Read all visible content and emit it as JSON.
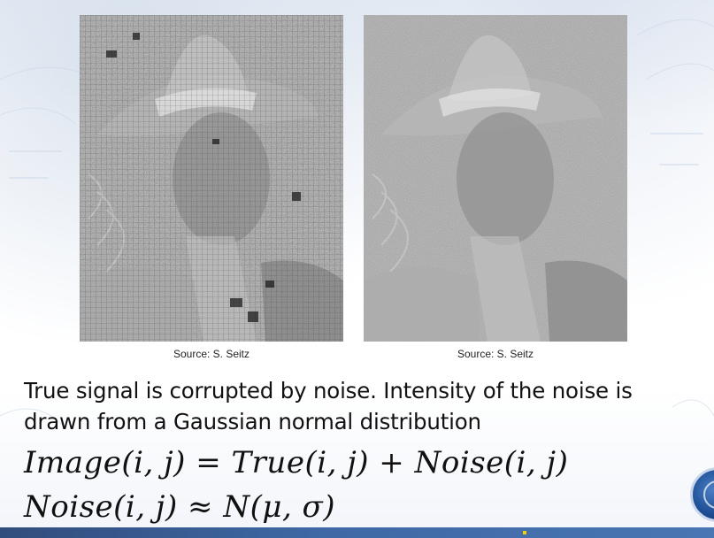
{
  "slide": {
    "left_image": {
      "name": "noisy-photo-cowboy-left",
      "caption": "Source: S. Seitz"
    },
    "right_image": {
      "name": "noisy-photo-cowboy-right",
      "caption": "Source: S. Seitz"
    },
    "body_text": "True signal is corrupted by noise. Intensity of the noise is drawn from a Gaussian normal distribution",
    "formula_1": "Image(i, j) = True(i, j) + Noise(i, j)",
    "formula_2": "Noise(i, j) ≈ N(μ, σ)"
  },
  "colors": {
    "accent": "#1f4f95",
    "text": "#111111",
    "highlight": "#f2d000"
  },
  "icons": {
    "corner_logo": "university-seal-icon"
  }
}
